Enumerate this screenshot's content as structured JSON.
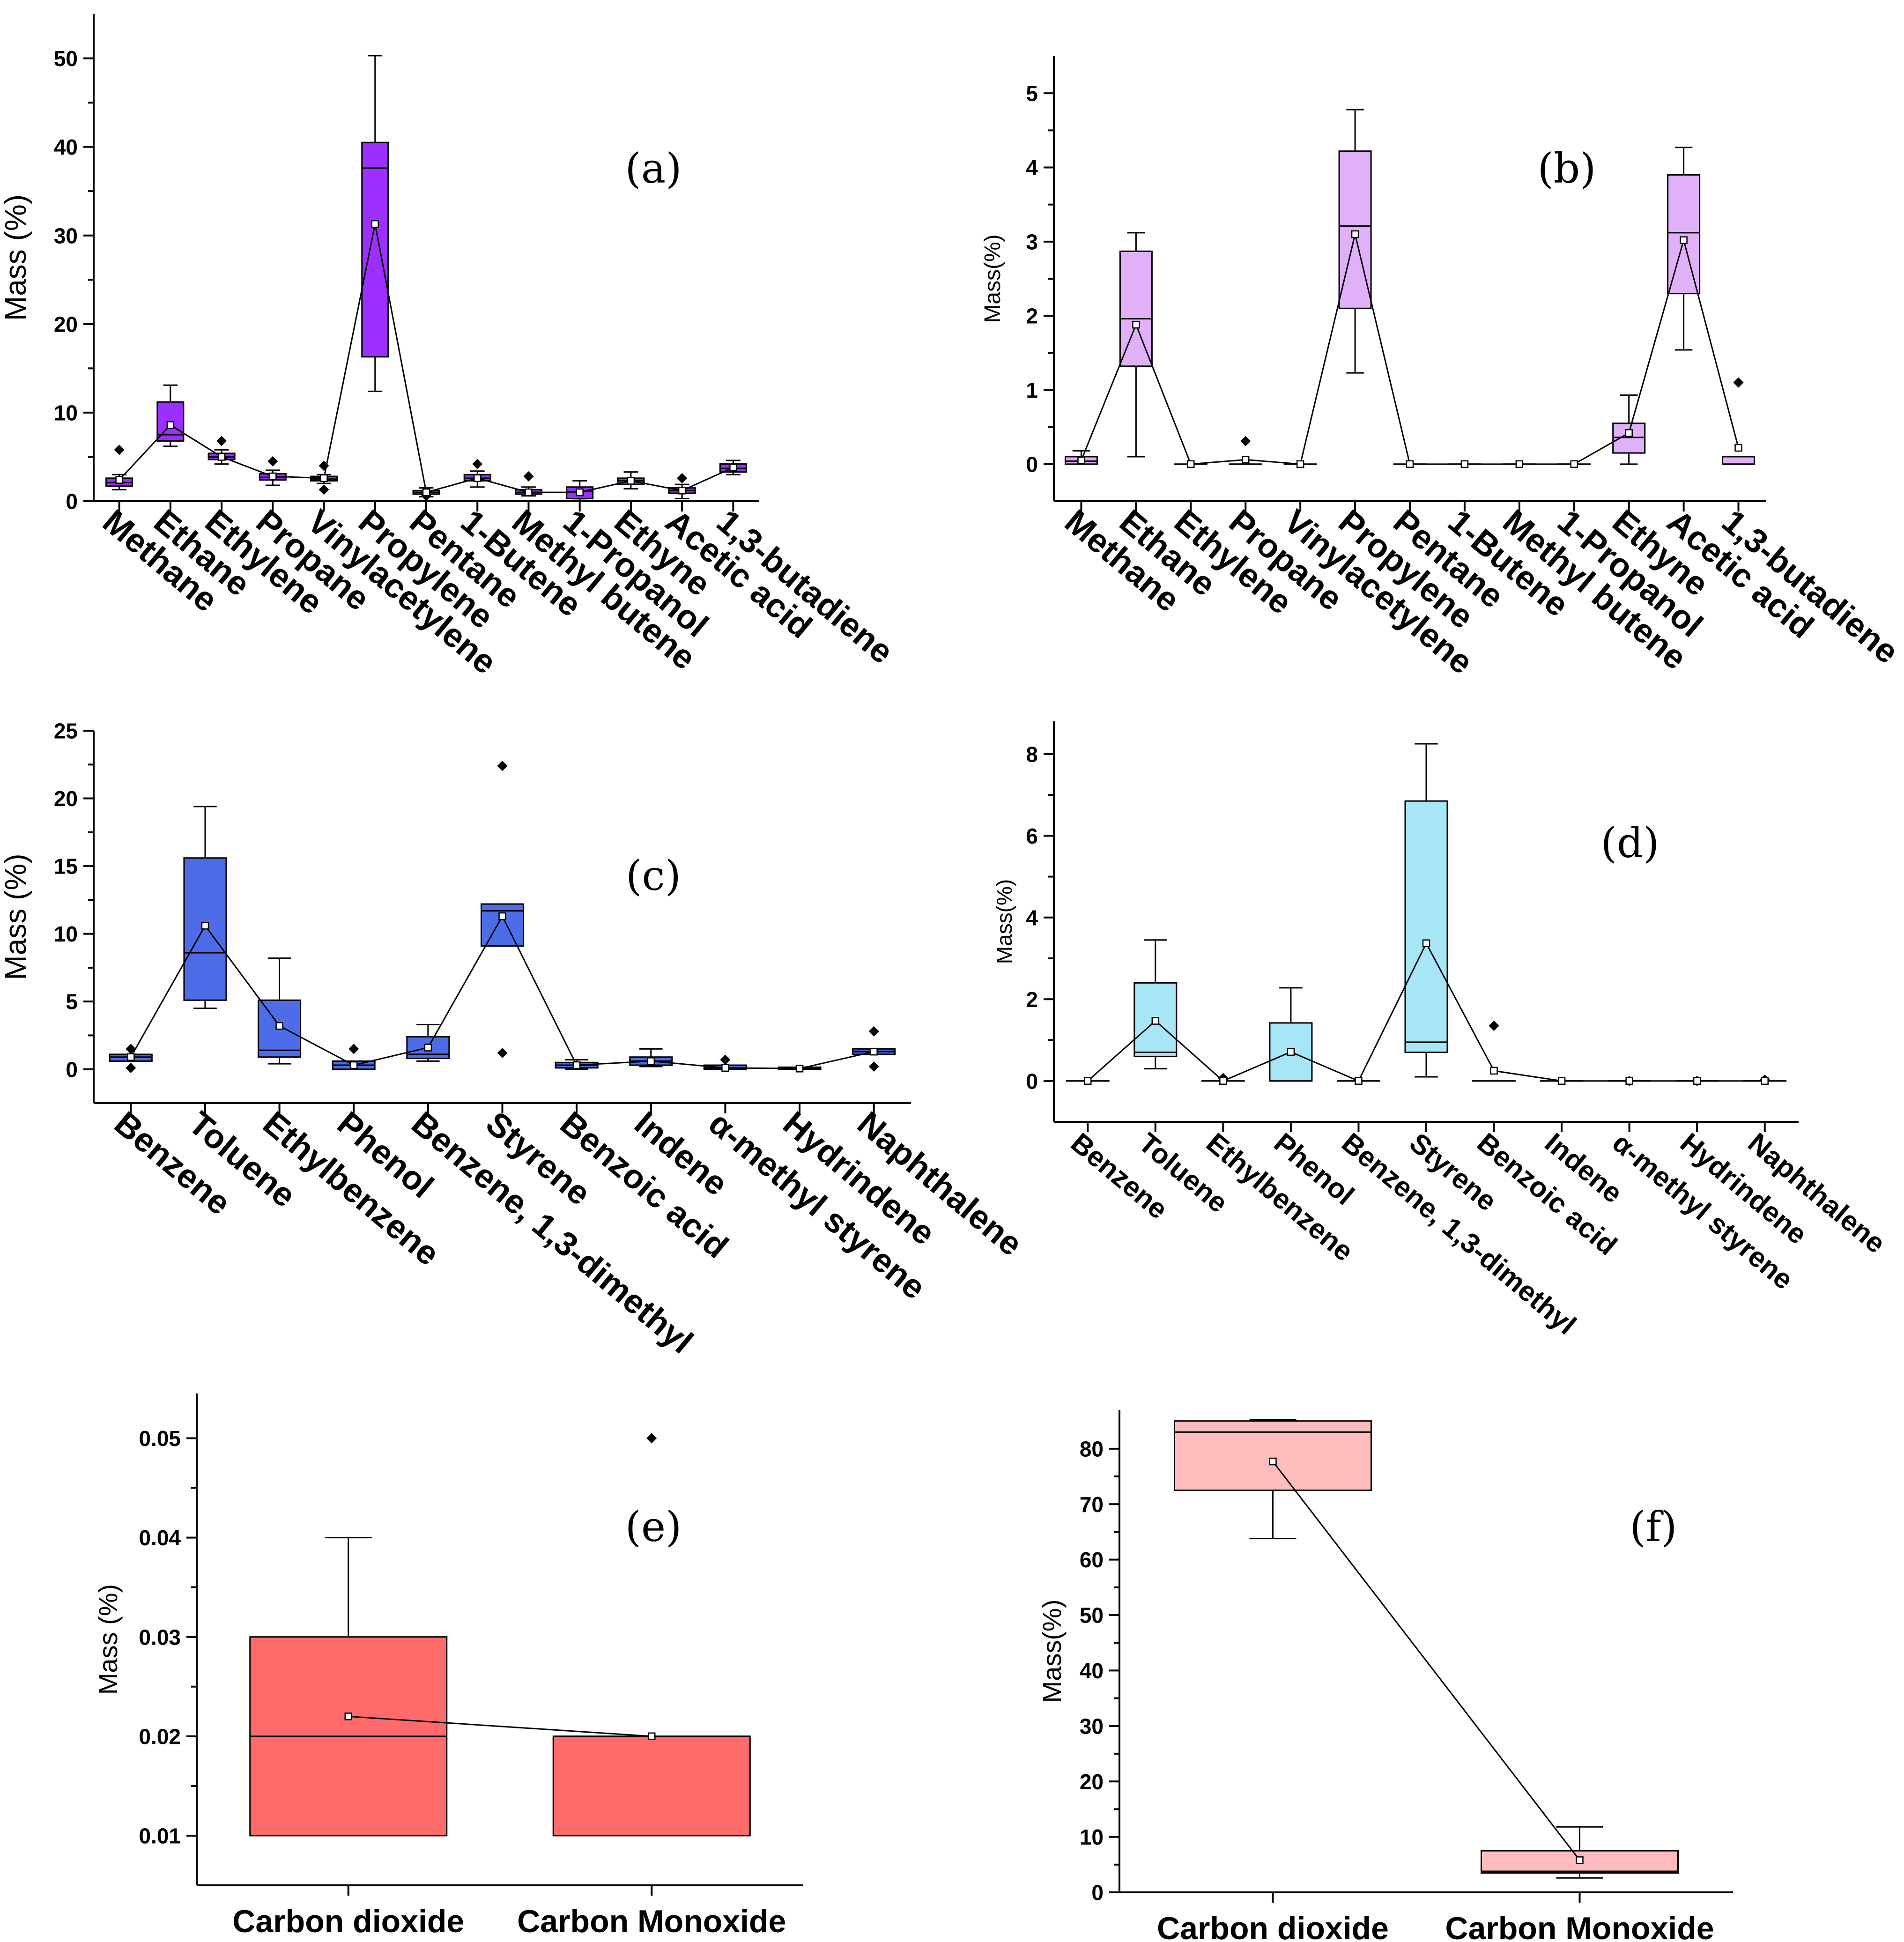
{
  "chart_data": [
    {
      "panel": "(a)",
      "type": "box",
      "ylabel": "Mass (%)",
      "ylim": [
        0,
        55
      ],
      "yticks": [
        0,
        10,
        20,
        30,
        40,
        50
      ],
      "ytick_labels": [
        "0",
        "10",
        "20",
        "30",
        "40",
        "50"
      ],
      "color": "#9b30ff",
      "categories": [
        "Methane",
        "Ethane",
        "Ethylene",
        "Propane",
        "Vinylacetylene",
        "Propylene",
        "Pentane",
        "1-Butene",
        "Methyl butene",
        "1-Propanol",
        "Ethyne",
        "Acetic acid",
        "1,3-butadiene"
      ],
      "boxes": [
        {
          "q1": 1.7,
          "q3": 2.6,
          "median": 2.1,
          "mean": 2.4,
          "wlo": 1.3,
          "whi": 3.0,
          "outliers": [
            5.8
          ]
        },
        {
          "q1": 6.8,
          "q3": 11.2,
          "median": 7.5,
          "mean": 8.6,
          "wlo": 6.2,
          "whi": 13.1,
          "outliers": []
        },
        {
          "q1": 4.7,
          "q3": 5.4,
          "median": 5.0,
          "mean": 5.0,
          "wlo": 4.2,
          "whi": 5.8,
          "outliers": [
            6.8
          ]
        },
        {
          "q1": 2.4,
          "q3": 3.1,
          "median": 2.7,
          "mean": 2.8,
          "wlo": 1.8,
          "whi": 3.5,
          "outliers": [
            4.5
          ]
        },
        {
          "q1": 2.3,
          "q3": 2.8,
          "median": 2.5,
          "mean": 2.6,
          "wlo": 2.0,
          "whi": 3.0,
          "outliers": [
            4.0,
            1.3
          ]
        },
        {
          "q1": 16.3,
          "q3": 40.5,
          "median": 37.6,
          "mean": 31.3,
          "wlo": 12.4,
          "whi": 50.3,
          "outliers": []
        },
        {
          "q1": 0.8,
          "q3": 1.2,
          "median": 1.0,
          "mean": 1.0,
          "wlo": 0.5,
          "whi": 1.5,
          "outliers": [
            0.6
          ]
        },
        {
          "q1": 2.3,
          "q3": 3.0,
          "median": 2.6,
          "mean": 2.6,
          "wlo": 1.6,
          "whi": 3.4,
          "outliers": [
            4.2
          ]
        },
        {
          "q1": 0.8,
          "q3": 1.3,
          "median": 1.0,
          "mean": 1.0,
          "wlo": 0.6,
          "whi": 1.6,
          "outliers": [
            2.8
          ]
        },
        {
          "q1": 0.3,
          "q3": 1.6,
          "median": 1.1,
          "mean": 1.0,
          "wlo": 0.1,
          "whi": 2.3,
          "outliers": []
        },
        {
          "q1": 1.9,
          "q3": 2.6,
          "median": 2.3,
          "mean": 2.3,
          "wlo": 1.4,
          "whi": 3.3,
          "outliers": []
        },
        {
          "q1": 0.9,
          "q3": 1.5,
          "median": 1.2,
          "mean": 1.2,
          "wlo": 0.3,
          "whi": 1.9,
          "outliers": [
            2.6
          ]
        },
        {
          "q1": 3.3,
          "q3": 4.2,
          "median": 3.7,
          "mean": 3.8,
          "wlo": 3.0,
          "whi": 4.6,
          "outliers": []
        }
      ]
    },
    {
      "panel": "(b)",
      "type": "box",
      "ylabel": "Mass(%)",
      "ylim": [
        -0.5,
        5.5
      ],
      "yticks": [
        0,
        1,
        2,
        3,
        4,
        5
      ],
      "ytick_labels": [
        "0",
        "1",
        "2",
        "3",
        "4",
        "5"
      ],
      "color": "#e0b0f8",
      "categories": [
        "Methane",
        "Ethane",
        "Ethylene",
        "Propane",
        "Vinylacetylene",
        "Propylene",
        "Pentane",
        "1-Butene",
        "Methyl butene",
        "1-Propanol",
        "Ethyne",
        "Acetic acid",
        "1,3-butadiene"
      ],
      "boxes": [
        {
          "q1": 0.0,
          "q3": 0.1,
          "median": 0.04,
          "mean": 0.05,
          "wlo": 0.0,
          "whi": 0.18,
          "outliers": []
        },
        {
          "q1": 1.32,
          "q3": 2.87,
          "median": 1.96,
          "mean": 1.88,
          "wlo": 0.1,
          "whi": 3.12,
          "outliers": []
        },
        {
          "q1": 0.0,
          "q3": 0.0,
          "median": 0.0,
          "mean": 0.0,
          "wlo": 0.0,
          "whi": 0.0,
          "outliers": []
        },
        {
          "q1": 0.0,
          "q3": 0.0,
          "median": 0.0,
          "mean": 0.06,
          "wlo": 0.0,
          "whi": 0.0,
          "outliers": [
            0.31
          ]
        },
        {
          "q1": 0.0,
          "q3": 0.0,
          "median": 0.0,
          "mean": 0.0,
          "wlo": 0.0,
          "whi": 0.0,
          "outliers": []
        },
        {
          "q1": 2.1,
          "q3": 4.22,
          "median": 3.21,
          "mean": 3.1,
          "wlo": 1.23,
          "whi": 4.78,
          "outliers": []
        },
        {
          "q1": 0.0,
          "q3": 0.0,
          "median": 0.0,
          "mean": 0.0,
          "wlo": 0.0,
          "whi": 0.0,
          "outliers": []
        },
        {
          "q1": 0.0,
          "q3": 0.0,
          "median": 0.0,
          "mean": 0.0,
          "wlo": 0.0,
          "whi": 0.0,
          "outliers": []
        },
        {
          "q1": 0.0,
          "q3": 0.0,
          "median": 0.0,
          "mean": 0.0,
          "wlo": 0.0,
          "whi": 0.0,
          "outliers": []
        },
        {
          "q1": 0.0,
          "q3": 0.0,
          "median": 0.0,
          "mean": 0.0,
          "wlo": 0.0,
          "whi": 0.0,
          "outliers": []
        },
        {
          "q1": 0.15,
          "q3": 0.55,
          "median": 0.36,
          "mean": 0.42,
          "wlo": 0.0,
          "whi": 0.93,
          "outliers": []
        },
        {
          "q1": 2.3,
          "q3": 3.9,
          "median": 3.12,
          "mean": 3.02,
          "wlo": 1.54,
          "whi": 4.27,
          "outliers": []
        },
        {
          "q1": 0.0,
          "q3": 0.1,
          "median": 0.0,
          "mean": 0.22,
          "wlo": 0.0,
          "whi": 0.1,
          "outliers": [
            1.1
          ]
        }
      ]
    },
    {
      "panel": "(c)",
      "type": "box",
      "ylabel": "Mass (%)",
      "ylim": [
        -2.5,
        25
      ],
      "yticks": [
        0,
        5,
        10,
        15,
        20,
        25
      ],
      "ytick_labels": [
        "0",
        "5",
        "10",
        "15",
        "20",
        "25"
      ],
      "color": "#4d6de8",
      "categories": [
        "Benzene",
        "Toluene",
        "Ethylbenzene",
        "Phenol",
        "Benzene, 1,3-dimethyl",
        "Styrene",
        "Benzoic acid",
        "Indene",
        "α-methyl styrene",
        "Hydrindene",
        "Naphthalene"
      ],
      "boxes": [
        {
          "q1": 0.6,
          "q3": 1.1,
          "median": 0.9,
          "mean": 0.9,
          "wlo": 0.6,
          "whi": 1.1,
          "outliers": [
            1.5,
            0.1
          ]
        },
        {
          "q1": 5.1,
          "q3": 15.6,
          "median": 8.6,
          "mean": 10.6,
          "wlo": 4.5,
          "whi": 19.4,
          "outliers": []
        },
        {
          "q1": 0.9,
          "q3": 5.1,
          "median": 1.4,
          "mean": 3.2,
          "wlo": 0.4,
          "whi": 8.2,
          "outliers": []
        },
        {
          "q1": 0.0,
          "q3": 0.6,
          "median": 0.3,
          "mean": 0.3,
          "wlo": 0.0,
          "whi": 0.6,
          "outliers": [
            1.5
          ]
        },
        {
          "q1": 0.8,
          "q3": 2.4,
          "median": 1.1,
          "mean": 1.6,
          "wlo": 0.6,
          "whi": 3.3,
          "outliers": []
        },
        {
          "q1": 9.1,
          "q3": 12.2,
          "median": 11.7,
          "mean": 11.3,
          "wlo": 9.1,
          "whi": 12.2,
          "outliers": [
            22.4,
            1.2
          ]
        },
        {
          "q1": 0.1,
          "q3": 0.5,
          "median": 0.3,
          "mean": 0.3,
          "wlo": 0.0,
          "whi": 0.7,
          "outliers": []
        },
        {
          "q1": 0.3,
          "q3": 0.9,
          "median": 0.6,
          "mean": 0.6,
          "wlo": 0.2,
          "whi": 1.5,
          "outliers": []
        },
        {
          "q1": 0.0,
          "q3": 0.3,
          "median": 0.1,
          "mean": 0.1,
          "wlo": 0.0,
          "whi": 0.3,
          "outliers": [
            0.7
          ]
        },
        {
          "q1": 0.0,
          "q3": 0.15,
          "median": 0.05,
          "mean": 0.05,
          "wlo": 0.0,
          "whi": 0.15,
          "outliers": []
        },
        {
          "q1": 1.1,
          "q3": 1.5,
          "median": 1.3,
          "mean": 1.3,
          "wlo": 1.1,
          "whi": 1.5,
          "outliers": [
            2.8,
            0.2
          ]
        }
      ]
    },
    {
      "panel": "(d)",
      "type": "box",
      "ylabel": "Mass(%)",
      "ylim": [
        -1,
        8.8
      ],
      "yticks": [
        0,
        2,
        4,
        6,
        8
      ],
      "ytick_labels": [
        "0",
        "2",
        "4",
        "6",
        "8"
      ],
      "color": "#a6e6f7",
      "categories": [
        "Benzene",
        "Toluene",
        "Ethylbenzene",
        "Phenol",
        "Benzene, 1,3-dimethyl",
        "Styrene",
        "Benzoic acid",
        "Indene",
        "α-methyl styrene",
        "Hydrindene",
        "Naphthalene"
      ],
      "boxes": [
        {
          "q1": 0.0,
          "q3": 0.0,
          "median": 0.0,
          "mean": 0.0,
          "wlo": 0.0,
          "whi": 0.0,
          "outliers": []
        },
        {
          "q1": 0.6,
          "q3": 2.4,
          "median": 0.7,
          "mean": 1.47,
          "wlo": 0.3,
          "whi": 3.45,
          "outliers": []
        },
        {
          "q1": 0.0,
          "q3": 0.0,
          "median": 0.0,
          "mean": 0.0,
          "wlo": 0.0,
          "whi": 0.0,
          "outliers": [
            0.07
          ]
        },
        {
          "q1": 0.0,
          "q3": 1.42,
          "median": 0.0,
          "mean": 0.71,
          "wlo": 0.0,
          "whi": 2.28,
          "outliers": []
        },
        {
          "q1": 0.0,
          "q3": 0.0,
          "median": 0.0,
          "mean": 0.0,
          "wlo": 0.0,
          "whi": 0.0,
          "outliers": []
        },
        {
          "q1": 0.7,
          "q3": 6.85,
          "median": 0.95,
          "mean": 3.37,
          "wlo": 0.1,
          "whi": 8.25,
          "outliers": []
        },
        {
          "q1": 0.0,
          "q3": 0.0,
          "median": 0.0,
          "mean": 0.25,
          "wlo": 0.0,
          "whi": 0.0,
          "outliers": [
            1.35
          ]
        },
        {
          "q1": 0.0,
          "q3": 0.0,
          "median": 0.0,
          "mean": 0.0,
          "wlo": 0.0,
          "whi": 0.0,
          "outliers": []
        },
        {
          "q1": 0.0,
          "q3": 0.0,
          "median": 0.0,
          "mean": 0.0,
          "wlo": 0.0,
          "whi": 0.0,
          "outliers": [
            0.0
          ]
        },
        {
          "q1": 0.0,
          "q3": 0.0,
          "median": 0.0,
          "mean": 0.0,
          "wlo": 0.0,
          "whi": 0.0,
          "outliers": [
            0.0
          ]
        },
        {
          "q1": 0.0,
          "q3": 0.0,
          "median": 0.0,
          "mean": 0.0,
          "wlo": 0.0,
          "whi": 0.0,
          "outliers": [
            0.03
          ]
        }
      ]
    },
    {
      "panel": "(e)",
      "type": "box",
      "ylabel": "Mass (%)",
      "ylim": [
        0.005,
        0.0545
      ],
      "yticks": [
        0.01,
        0.02,
        0.03,
        0.04,
        0.05
      ],
      "ytick_labels": [
        "0.01",
        "0.02",
        "0.03",
        "0.04",
        "0.05"
      ],
      "color": "#ff6b6b",
      "categories": [
        "Carbon dioxide",
        "Carbon Monoxide"
      ],
      "boxes": [
        {
          "q1": 0.01,
          "q3": 0.03,
          "median": 0.02,
          "mean": 0.022,
          "wlo": 0.01,
          "whi": 0.04,
          "outliers": []
        },
        {
          "q1": 0.01,
          "q3": 0.02,
          "median": 0.02,
          "mean": 0.02,
          "wlo": 0.01,
          "whi": 0.02,
          "outliers": [
            0.05
          ]
        }
      ]
    },
    {
      "panel": "(f)",
      "type": "box",
      "ylabel": "Mass(%)",
      "ylim": [
        0,
        87
      ],
      "yticks": [
        0,
        10,
        20,
        30,
        40,
        50,
        60,
        70,
        80
      ],
      "ytick_labels": [
        "0",
        "10",
        "20",
        "30",
        "40",
        "50",
        "60",
        "70",
        "80"
      ],
      "color": "#ffbcbc",
      "categories": [
        "Carbon dioxide",
        "Carbon Monoxide"
      ],
      "boxes": [
        {
          "q1": 72.5,
          "q3": 85.0,
          "median": 83.0,
          "mean": 77.7,
          "wlo": 63.8,
          "whi": 85.2,
          "outliers": []
        },
        {
          "q1": 3.5,
          "q3": 7.5,
          "median": 3.8,
          "mean": 5.8,
          "wlo": 2.6,
          "whi": 11.8,
          "outliers": []
        }
      ]
    }
  ]
}
